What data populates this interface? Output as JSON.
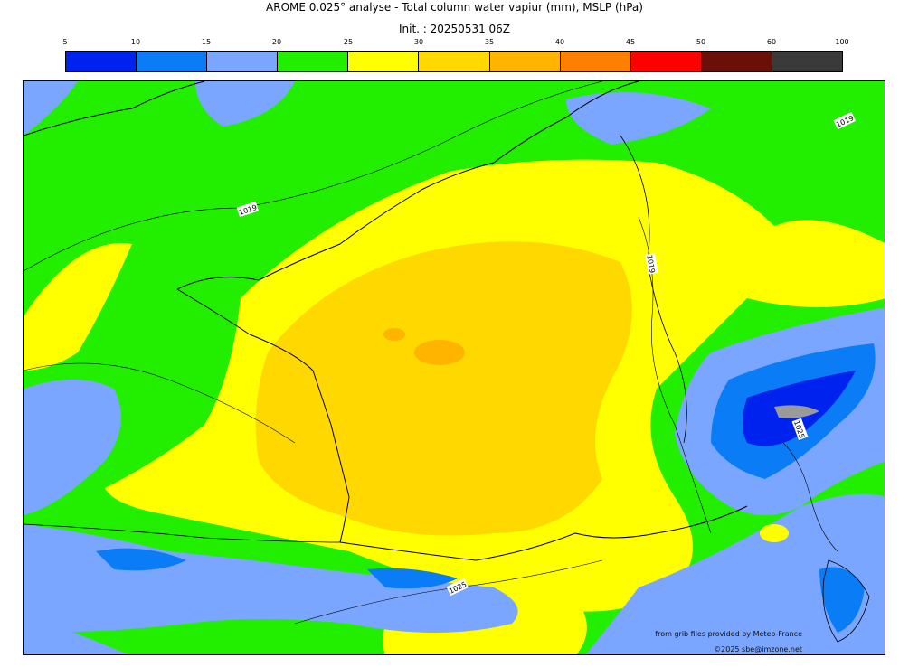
{
  "title": {
    "line1": "AROME 0.025° analyse - Total column water vapiur (mm), MSLP (hPa)",
    "line2": "Init. : 20250531 06Z"
  },
  "colorbar": {
    "ticks": [
      "5",
      "10",
      "15",
      "20",
      "25",
      "30",
      "35",
      "40",
      "45",
      "50",
      "60",
      "100"
    ],
    "colors": [
      "#0022ee",
      "#0a7cf5",
      "#7aa6ff",
      "#22ee00",
      "#ffff00",
      "#ffd800",
      "#ffb400",
      "#ff8000",
      "#ff0000",
      "#6a1008",
      "#3a3a3a"
    ]
  },
  "map": {
    "isobar_labels": [
      "1019",
      "1019",
      "1019",
      "1025",
      "1025"
    ]
  },
  "credits": {
    "source": "from grib files provided by Meteo-France",
    "copyright": "©2025 sbe@imzone.net"
  }
}
